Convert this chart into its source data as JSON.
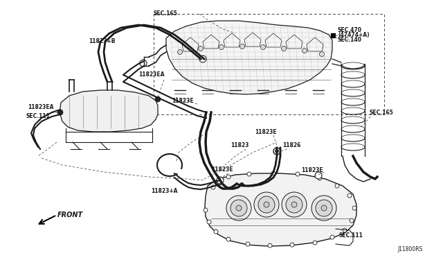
{
  "diagram_code": "J11800RS",
  "background_color": "#ffffff",
  "line_color": "#1a1a1a",
  "text_color": "#1a1a1a",
  "gray_color": "#888888",
  "labels": {
    "sec165_top": "SEC.165",
    "sec470_line1": "SEC.470",
    "sec470_line2": "(47474+A)",
    "sec140": "SEC.140",
    "11823B": "11823+B",
    "11823EA_top": "11823EA",
    "11823EA_left": "11823EA",
    "sec111_left": "SEC.111",
    "11823E_center": "11823E",
    "11823E_mid": "11823E",
    "11823": "11823",
    "11826": "11826",
    "11823A": "11823+A",
    "sec165_right": "SEC.165",
    "sec111_bottom": "SEC.111",
    "front": "FRONT"
  },
  "font_size": 6.5,
  "font_size_small": 5.5
}
